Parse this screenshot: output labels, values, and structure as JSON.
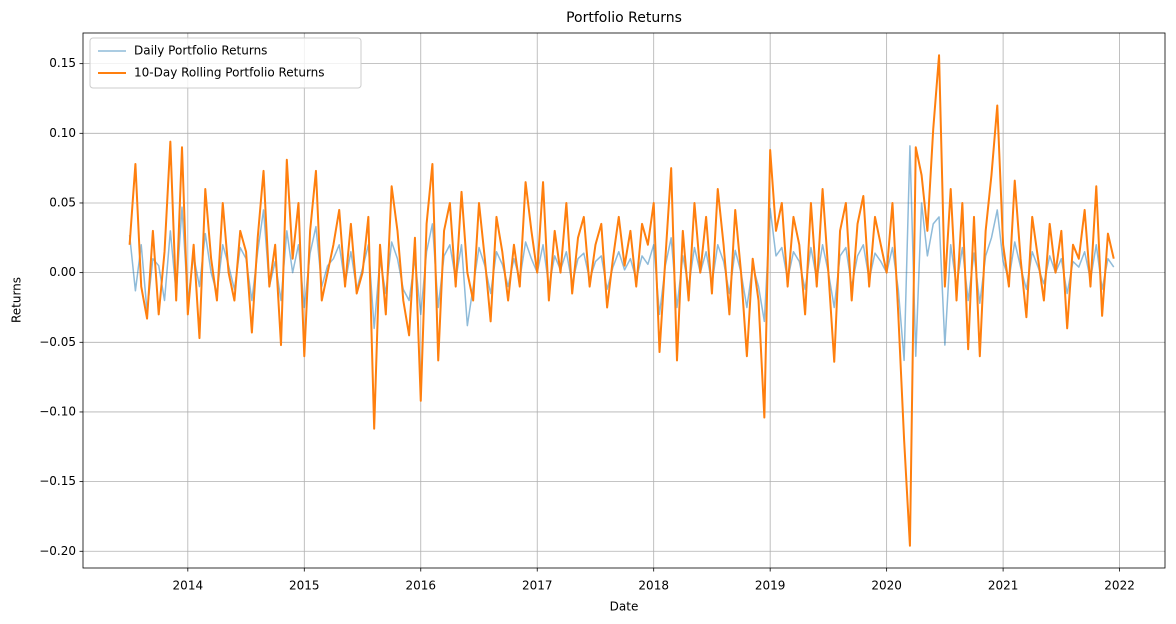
{
  "chart_data": {
    "type": "line",
    "title": "Portfolio Returns",
    "x_label": "Date",
    "y_label": "Returns",
    "x": [
      2013.5,
      2013.55,
      2013.6,
      2013.65,
      2013.7,
      2013.75,
      2013.8,
      2013.85,
      2013.9,
      2013.95,
      2014.0,
      2014.05,
      2014.1,
      2014.15,
      2014.2,
      2014.25,
      2014.3,
      2014.35,
      2014.4,
      2014.45,
      2014.5,
      2014.55,
      2014.6,
      2014.65,
      2014.7,
      2014.75,
      2014.8,
      2014.85,
      2014.9,
      2014.95,
      2015.0,
      2015.05,
      2015.1,
      2015.15,
      2015.2,
      2015.25,
      2015.3,
      2015.35,
      2015.4,
      2015.45,
      2015.5,
      2015.55,
      2015.6,
      2015.65,
      2015.7,
      2015.75,
      2015.8,
      2015.85,
      2015.9,
      2015.95,
      2016.0,
      2016.05,
      2016.1,
      2016.15,
      2016.2,
      2016.25,
      2016.3,
      2016.35,
      2016.4,
      2016.45,
      2016.5,
      2016.55,
      2016.6,
      2016.65,
      2016.7,
      2016.75,
      2016.8,
      2016.85,
      2016.9,
      2016.95,
      2017.0,
      2017.05,
      2017.1,
      2017.15,
      2017.2,
      2017.25,
      2017.3,
      2017.35,
      2017.4,
      2017.45,
      2017.5,
      2017.55,
      2017.6,
      2017.65,
      2017.7,
      2017.75,
      2017.8,
      2017.85,
      2017.9,
      2017.95,
      2018.0,
      2018.05,
      2018.1,
      2018.15,
      2018.2,
      2018.25,
      2018.3,
      2018.35,
      2018.4,
      2018.45,
      2018.5,
      2018.55,
      2018.6,
      2018.65,
      2018.7,
      2018.75,
      2018.8,
      2018.85,
      2018.9,
      2018.95,
      2019.0,
      2019.05,
      2019.1,
      2019.15,
      2019.2,
      2019.25,
      2019.3,
      2019.35,
      2019.4,
      2019.45,
      2019.5,
      2019.55,
      2019.6,
      2019.65,
      2019.7,
      2019.75,
      2019.8,
      2019.85,
      2019.9,
      2019.95,
      2020.0,
      2020.05,
      2020.1,
      2020.15,
      2020.2,
      2020.25,
      2020.3,
      2020.35,
      2020.4,
      2020.45,
      2020.5,
      2020.55,
      2020.6,
      2020.65,
      2020.7,
      2020.75,
      2020.8,
      2020.85,
      2020.9,
      2020.95,
      2021.0,
      2021.05,
      2021.1,
      2021.15,
      2021.2,
      2021.25,
      2021.3,
      2021.35,
      2021.4,
      2021.45,
      2021.5,
      2021.55,
      2021.6,
      2021.65,
      2021.7,
      2021.75,
      2021.8,
      2021.85,
      2021.9,
      2021.95
    ],
    "series": [
      {
        "name": "Daily Portfolio Returns",
        "color": "#1f77b4",
        "values": [
          0.027,
          -0.013,
          0.02,
          -0.028,
          0.01,
          0.005,
          -0.02,
          0.03,
          -0.015,
          0.047,
          -0.02,
          0.012,
          -0.01,
          0.028,
          0.0,
          -0.015,
          0.02,
          0.005,
          -0.012,
          0.018,
          0.01,
          -0.02,
          0.015,
          0.045,
          -0.01,
          0.008,
          -0.02,
          0.03,
          0.0,
          0.02,
          -0.025,
          0.014,
          0.033,
          -0.01,
          0.005,
          0.01,
          0.02,
          -0.008,
          0.015,
          -0.012,
          0.003,
          0.02,
          -0.04,
          0.01,
          -0.015,
          0.022,
          0.01,
          -0.012,
          -0.02,
          0.01,
          -0.03,
          0.015,
          0.035,
          -0.025,
          0.012,
          0.02,
          -0.005,
          0.02,
          -0.038,
          -0.01,
          0.018,
          0.005,
          -0.015,
          0.015,
          0.006,
          -0.01,
          0.01,
          -0.005,
          0.022,
          0.01,
          0.0,
          0.02,
          -0.01,
          0.012,
          0.002,
          0.015,
          -0.008,
          0.01,
          0.014,
          -0.005,
          0.008,
          0.012,
          -0.012,
          0.004,
          0.015,
          0.002,
          0.01,
          -0.005,
          0.012,
          0.006,
          0.02,
          -0.03,
          0.005,
          0.025,
          -0.025,
          0.012,
          -0.01,
          0.018,
          0.0,
          0.015,
          -0.008,
          0.02,
          0.008,
          -0.015,
          0.016,
          0.0,
          -0.025,
          0.005,
          -0.01,
          -0.035,
          0.046,
          0.012,
          0.018,
          -0.005,
          0.015,
          0.008,
          -0.012,
          0.018,
          -0.005,
          0.02,
          0.0,
          -0.025,
          0.012,
          0.018,
          -0.01,
          0.012,
          0.02,
          -0.005,
          0.014,
          0.008,
          0.0,
          0.018,
          -0.012,
          -0.063,
          0.091,
          -0.06,
          0.05,
          0.012,
          0.035,
          0.04,
          -0.052,
          0.02,
          -0.01,
          0.018,
          -0.02,
          0.014,
          -0.022,
          0.012,
          0.025,
          0.045,
          0.008,
          -0.005,
          0.022,
          0.004,
          -0.012,
          0.015,
          0.004,
          -0.008,
          0.012,
          0.0,
          0.01,
          -0.015,
          0.008,
          0.004,
          0.015,
          -0.005,
          0.02,
          -0.012,
          0.01,
          0.004
        ]
      },
      {
        "name": "10-Day Rolling Portfolio Returns",
        "color": "#ff7f0e",
        "values": [
          0.02,
          0.078,
          -0.01,
          -0.033,
          0.03,
          -0.03,
          0.015,
          0.094,
          -0.02,
          0.09,
          -0.03,
          0.02,
          -0.047,
          0.06,
          0.01,
          -0.02,
          0.05,
          0.0,
          -0.02,
          0.03,
          0.015,
          -0.043,
          0.025,
          0.073,
          -0.01,
          0.02,
          -0.052,
          0.081,
          0.01,
          0.05,
          -0.06,
          0.03,
          0.073,
          -0.02,
          0.0,
          0.02,
          0.045,
          -0.01,
          0.035,
          -0.015,
          0.0,
          0.04,
          -0.112,
          0.02,
          -0.03,
          0.062,
          0.03,
          -0.02,
          -0.045,
          0.025,
          -0.092,
          0.035,
          0.078,
          -0.063,
          0.03,
          0.05,
          -0.01,
          0.058,
          0.0,
          -0.02,
          0.05,
          0.01,
          -0.035,
          0.04,
          0.015,
          -0.02,
          0.02,
          -0.01,
          0.065,
          0.03,
          0.0,
          0.065,
          -0.02,
          0.03,
          0.0,
          0.05,
          -0.015,
          0.025,
          0.04,
          -0.01,
          0.02,
          0.035,
          -0.025,
          0.01,
          0.04,
          0.005,
          0.03,
          -0.01,
          0.035,
          0.02,
          0.05,
          -0.057,
          0.01,
          0.075,
          -0.063,
          0.03,
          -0.02,
          0.05,
          0.0,
          0.04,
          -0.015,
          0.06,
          0.02,
          -0.03,
          0.045,
          0.0,
          -0.06,
          0.01,
          -0.02,
          -0.104,
          0.088,
          0.03,
          0.05,
          -0.01,
          0.04,
          0.02,
          -0.03,
          0.05,
          -0.01,
          0.06,
          0.0,
          -0.064,
          0.03,
          0.05,
          -0.02,
          0.035,
          0.055,
          -0.01,
          0.04,
          0.02,
          0.0,
          0.05,
          -0.03,
          -0.12,
          -0.196,
          0.09,
          0.07,
          0.03,
          0.103,
          0.156,
          -0.01,
          0.06,
          -0.02,
          0.05,
          -0.055,
          0.04,
          -0.06,
          0.03,
          0.07,
          0.12,
          0.02,
          -0.01,
          0.066,
          0.01,
          -0.032,
          0.04,
          0.01,
          -0.02,
          0.035,
          0.0,
          0.03,
          -0.04,
          0.02,
          0.01,
          0.045,
          -0.01,
          0.062,
          -0.031,
          0.028,
          0.01
        ]
      }
    ],
    "xlim": [
      2013.1,
      2022.39
    ],
    "xticks": [
      2014,
      2015,
      2016,
      2017,
      2018,
      2019,
      2020,
      2021,
      2022
    ],
    "ylim": [
      -0.212,
      0.172
    ],
    "yticks": [
      {
        "value": -0.2,
        "label": "−0.20"
      },
      {
        "value": -0.15,
        "label": "−0.15"
      },
      {
        "value": -0.1,
        "label": "−0.10"
      },
      {
        "value": -0.05,
        "label": "−0.05"
      },
      {
        "value": 0,
        "label": "0.00"
      },
      {
        "value": 0.05,
        "label": "0.05"
      },
      {
        "value": 0.1,
        "label": "0.10"
      },
      {
        "value": 0.15,
        "label": "0.15"
      }
    ],
    "grid": true,
    "legend": "upper left"
  }
}
